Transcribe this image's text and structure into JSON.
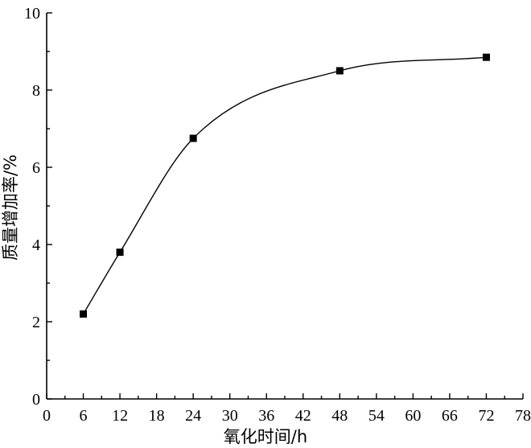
{
  "chart_data": {
    "type": "scatter",
    "title": "",
    "xlabel": "氧化时间/h",
    "ylabel": "质量增加率/%",
    "xlim": [
      0,
      78
    ],
    "ylim": [
      0,
      10
    ],
    "xticks": [
      0,
      6,
      12,
      18,
      24,
      30,
      36,
      42,
      48,
      54,
      60,
      66,
      72,
      78
    ],
    "yticks": [
      0,
      2,
      4,
      6,
      8,
      10
    ],
    "grid": false,
    "smooth_fit_line": true,
    "series": [
      {
        "x": [
          6,
          12,
          24,
          48,
          72
        ],
        "y": [
          2.2,
          3.8,
          6.75,
          8.5,
          8.85
        ],
        "marker": "square",
        "color": "#000000"
      }
    ]
  }
}
